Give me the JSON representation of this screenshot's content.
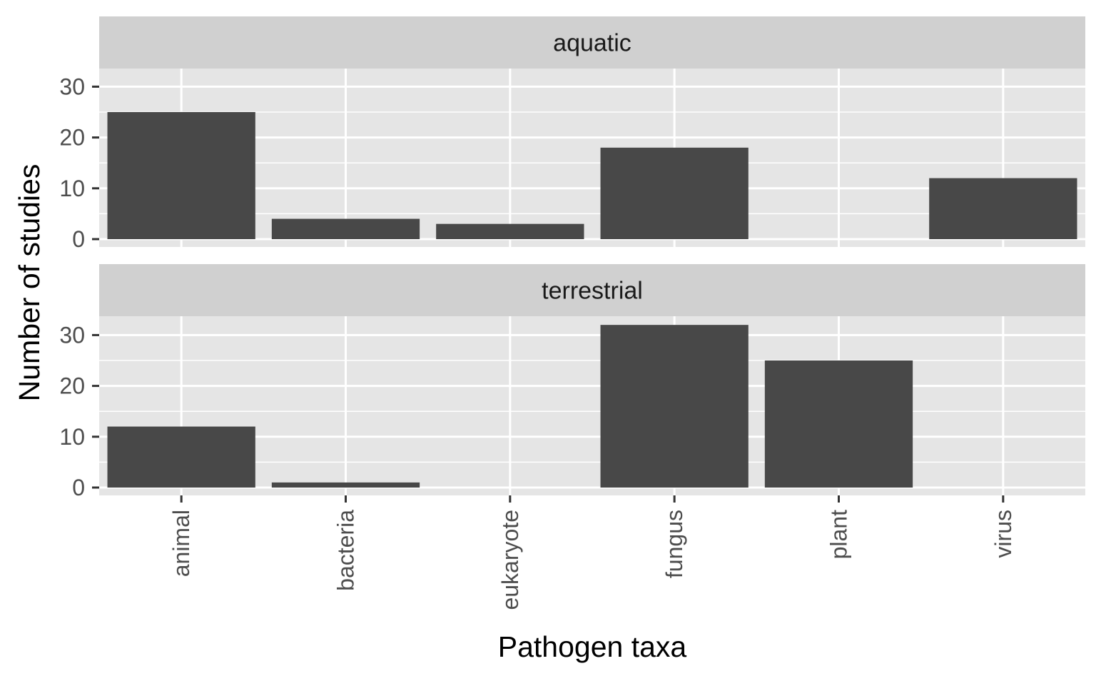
{
  "chart_data": {
    "type": "bar",
    "xlabel": "Pathogen taxa",
    "ylabel": "Number of studies",
    "categories": [
      "animal",
      "bacteria",
      "eukaryote",
      "fungus",
      "plant",
      "virus"
    ],
    "ylim": [
      0,
      35
    ],
    "yticks": [
      0,
      10,
      20,
      30
    ],
    "facets": [
      {
        "label": "aquatic",
        "values": [
          25,
          4,
          3,
          18,
          0,
          12
        ]
      },
      {
        "label": "terrestrial",
        "values": [
          12,
          1,
          0,
          32,
          25,
          0
        ]
      }
    ],
    "grid": true,
    "legend": "none",
    "colors": {
      "bar": "#484848",
      "panel": "#e5e5e5",
      "strip": "#d0d0d0",
      "grid": "#ffffff"
    }
  }
}
